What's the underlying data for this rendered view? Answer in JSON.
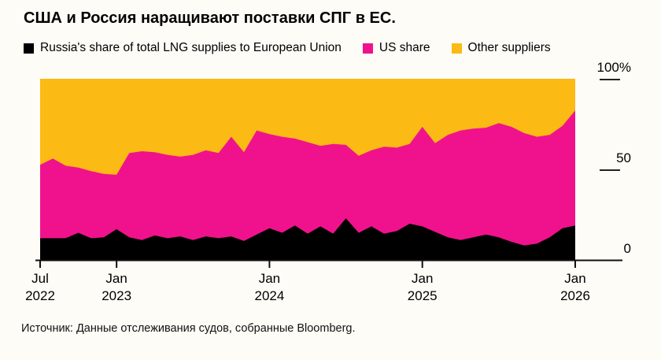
{
  "title": "США и Россия наращивают поставки СПГ в ЕС.",
  "legend": {
    "items": [
      {
        "label": "Russia's share of total LNG supplies to European Union",
        "color": "#000000"
      },
      {
        "label": "US share",
        "color": "#f0128c"
      },
      {
        "label": "Other suppliers",
        "color": "#fbba14"
      }
    ]
  },
  "source": "Источник: Данные отслеживания судов, собранные Bloomberg.",
  "chart_data": {
    "type": "area",
    "stacked": true,
    "unit": "%",
    "title": "США и Россия наращивают поставки СПГ в ЕС.",
    "ylim": [
      0,
      100
    ],
    "grid": false,
    "legend_position": "top",
    "x": [
      "Jul 2022",
      "Aug 2022",
      "Sep 2022",
      "Oct 2022",
      "Nov 2022",
      "Dec 2022",
      "Jan 2023",
      "Feb 2023",
      "Mar 2023",
      "Apr 2023",
      "May 2023",
      "Jun 2023",
      "Jul 2023",
      "Aug 2023",
      "Sep 2023",
      "Oct 2023",
      "Nov 2023",
      "Dec 2023",
      "Jan 2024",
      "Feb 2024",
      "Mar 2024",
      "Apr 2024",
      "May 2024",
      "Jun 2024",
      "Jul 2024",
      "Aug 2024",
      "Sep 2024",
      "Oct 2024",
      "Nov 2024",
      "Dec 2024",
      "Jan 2025",
      "Feb 2025",
      "Mar 2025",
      "Apr 2025",
      "May 2025",
      "Jun 2025",
      "Jul 2025",
      "Aug 2025",
      "Sep 2025",
      "Oct 2025",
      "Nov 2025",
      "Dec 2025",
      "Jan 2026"
    ],
    "series": [
      {
        "name": "Russia's share of total LNG supplies to European Union",
        "color": "#000000",
        "values": [
          12,
          12,
          12,
          15,
          12,
          12.5,
          17,
          12.5,
          11,
          13.5,
          12,
          13,
          11,
          13,
          12,
          13,
          10.5,
          14,
          17.5,
          15,
          19,
          14.5,
          18.5,
          14.5,
          23,
          15,
          18.5,
          14.5,
          16,
          20,
          18.5,
          15.5,
          12.5,
          11,
          12.5,
          14,
          12.5,
          10,
          8,
          9,
          12.5,
          17.5,
          19
        ]
      },
      {
        "name": "US share",
        "color": "#f0128c",
        "values": [
          40.5,
          44,
          40,
          36,
          37,
          35,
          30,
          46.5,
          49,
          46,
          46,
          44,
          47,
          47.5,
          47,
          55,
          49,
          57.5,
          52,
          53,
          48,
          50.5,
          44.5,
          49.5,
          40.5,
          42.5,
          42,
          48,
          46,
          44,
          55,
          49,
          56.5,
          60.5,
          60,
          59,
          63,
          63.5,
          62,
          59,
          56.5,
          56.5,
          63.5
        ]
      },
      {
        "name": "Other suppliers",
        "color": "#fbba14",
        "values": [
          47.5,
          44,
          48,
          49,
          51,
          52.5,
          53,
          41,
          40,
          40.5,
          42,
          43,
          42,
          39.5,
          41,
          32,
          40.5,
          28.5,
          30.5,
          32,
          33,
          35,
          37,
          36,
          36.5,
          42.5,
          39.5,
          37.5,
          38,
          36,
          26.5,
          35.5,
          31,
          28.5,
          27.5,
          27,
          24.5,
          26.5,
          30,
          32,
          31,
          26,
          17.5
        ]
      }
    ],
    "y_ticks": [
      {
        "label": "100%",
        "value": 100,
        "dash": true
      },
      {
        "label": "50",
        "value": 50,
        "dash": true
      },
      {
        "label": "0",
        "value": 0,
        "dash": false
      }
    ],
    "x_ticks": [
      {
        "month": "Jul",
        "year": "2022",
        "index": 0
      },
      {
        "month": "Jan",
        "year": "2023",
        "index": 6
      },
      {
        "month": "Jan",
        "year": "2024",
        "index": 18
      },
      {
        "month": "Jan",
        "year": "2025",
        "index": 30
      },
      {
        "month": "Jan",
        "year": "2026",
        "index": 42
      }
    ]
  }
}
